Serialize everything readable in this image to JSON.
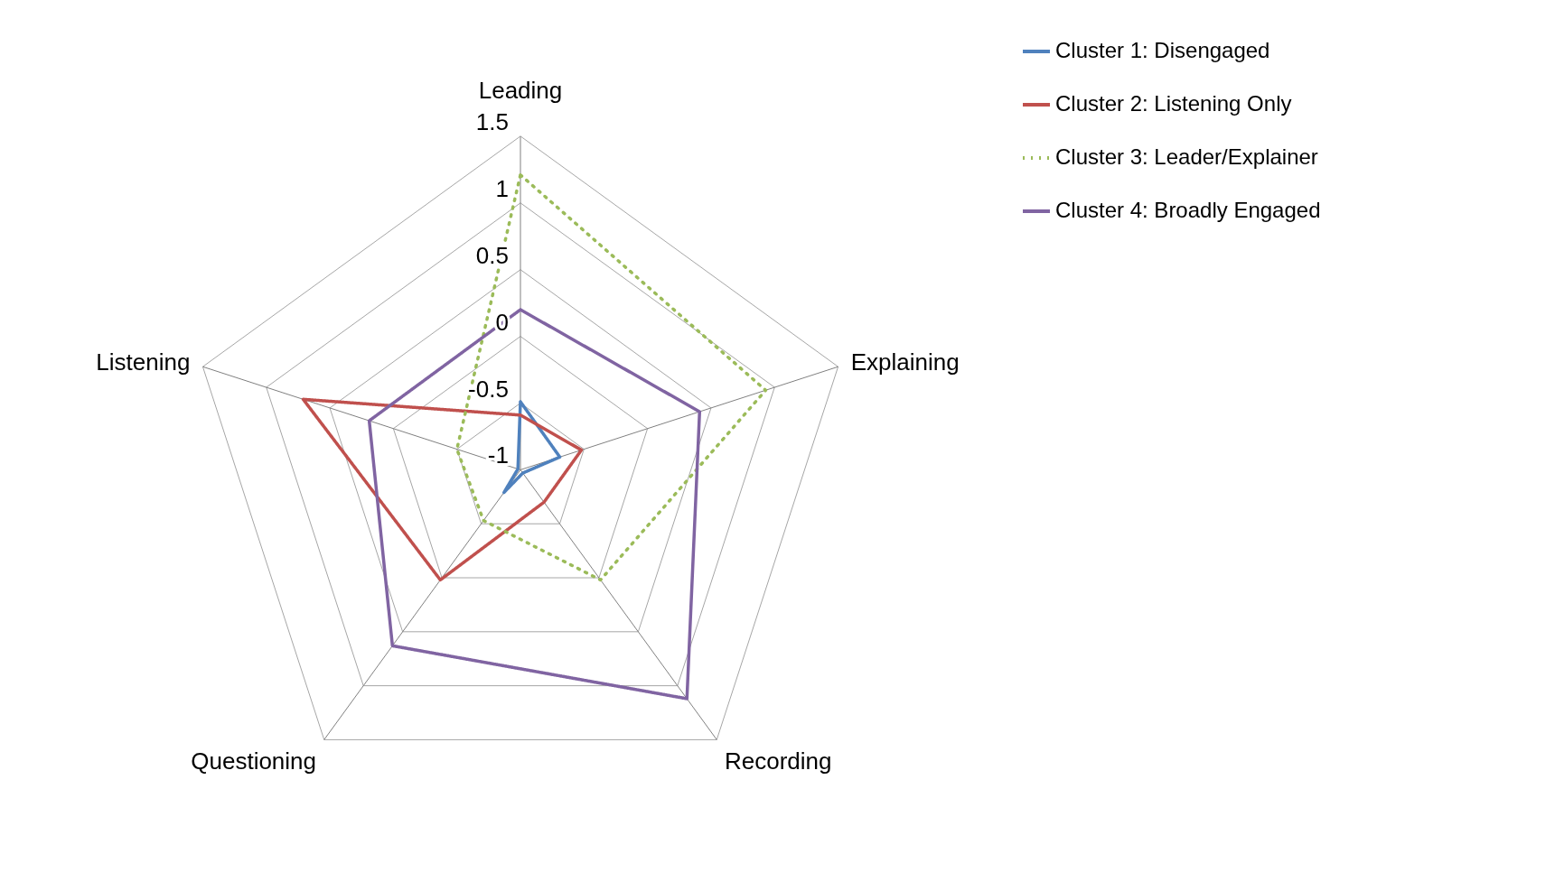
{
  "chart_data": {
    "type": "radar",
    "categories": [
      "Leading",
      "Explaining",
      "Recording",
      "Questioning",
      "Listening"
    ],
    "ylim": [
      -1,
      1.5
    ],
    "yticks": [
      -1,
      -0.5,
      0,
      0.5,
      1,
      1.5
    ],
    "grid": true,
    "legend": "right",
    "series": [
      {
        "name": "Cluster 1: Disengaged",
        "color": "#4f81bd",
        "line_style": "solid",
        "values": [
          -0.49,
          -0.69,
          -0.97,
          -0.79,
          -0.98
        ]
      },
      {
        "name": "Cluster 2: Listening Only",
        "color": "#c0504d",
        "line_style": "solid",
        "values": [
          -0.59,
          -0.52,
          -0.7,
          0.02,
          0.71
        ]
      },
      {
        "name": "Cluster 3: Leader/Explainer",
        "color": "#9bbb59",
        "line_style": "dotted",
        "values": [
          1.21,
          0.93,
          0.02,
          -0.53,
          -0.5
        ]
      },
      {
        "name": "Cluster 4: Broadly Engaged",
        "color": "#8064a2",
        "line_style": "solid",
        "values": [
          0.2,
          0.41,
          1.12,
          0.63,
          0.19
        ]
      }
    ]
  }
}
